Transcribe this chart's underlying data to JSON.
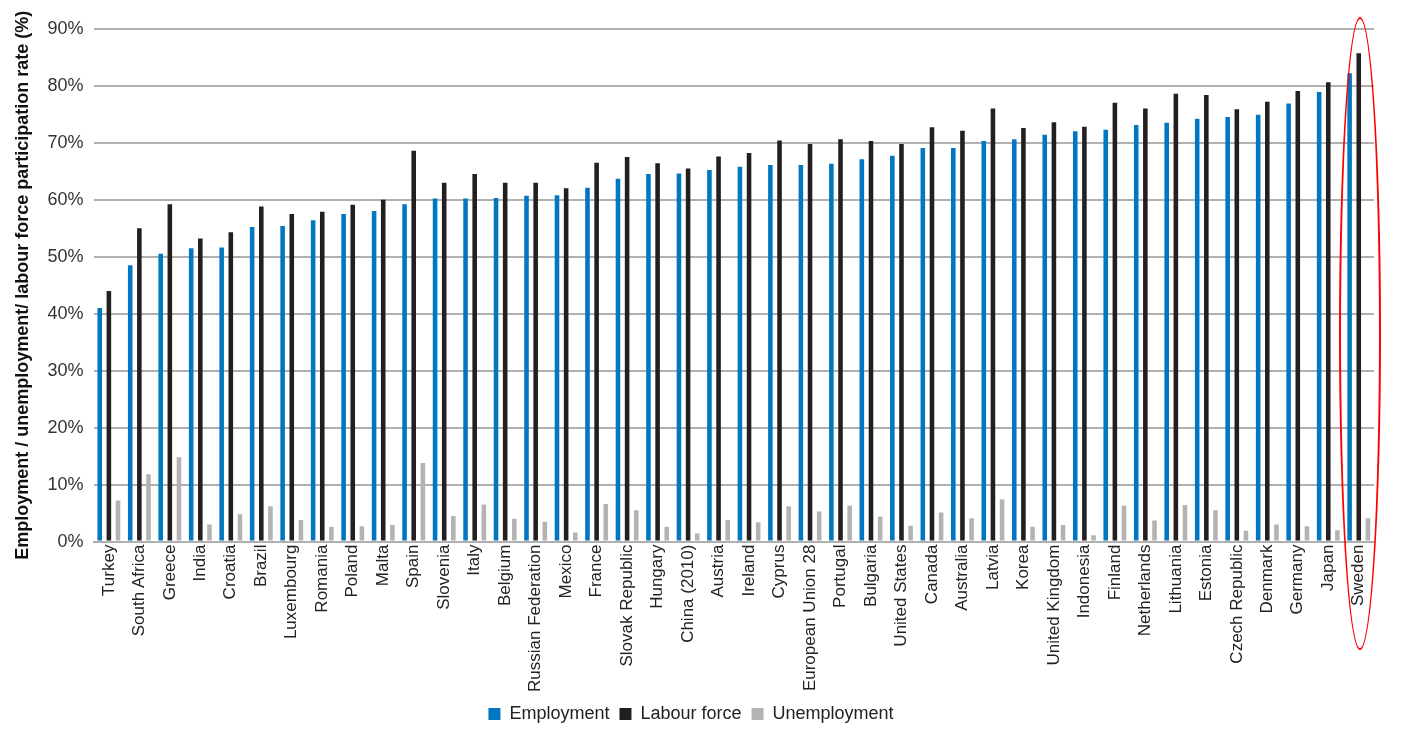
{
  "chart_data": {
    "type": "bar",
    "ylabel": "Employment / unemployment/ labour force participation rate (%)",
    "categories": [
      "Turkey",
      "South Africa",
      "Greece",
      "India",
      "Croatia",
      "Brazil",
      "Luxembourg",
      "Romania",
      "Poland",
      "Malta",
      "Spain",
      "Slovenia",
      "Italy",
      "Belgium",
      "Russian Federation",
      "Mexico",
      "France",
      "Slovak Republic",
      "Hungary",
      "China (2010)",
      "Austria",
      "Ireland",
      "Cyprus",
      "European Union 28",
      "Portugal",
      "Bulgaria",
      "United States",
      "Canada",
      "Australia",
      "Latvia",
      "Korea",
      "United Kingdom",
      "Indonesia",
      "Finland",
      "Netherlands",
      "Lithuania",
      "Estonia",
      "Czech Republic",
      "Denmark",
      "Germany",
      "Japan",
      "Sweden"
    ],
    "series": [
      {
        "name": "Employment",
        "color": "#0077c0",
        "values": [
          41,
          48.5,
          50.5,
          51.5,
          51.6,
          55.2,
          55.4,
          56.4,
          57.5,
          58,
          59.2,
          60.2,
          60.2,
          60.3,
          60.7,
          60.8,
          62.1,
          63.7,
          64.5,
          64.6,
          65.2,
          65.8,
          66.1,
          66.1,
          66.3,
          67.1,
          67.7,
          69.1,
          69.1,
          70.3,
          70.6,
          71.4,
          72,
          72.3,
          73.1,
          73.5,
          74.2,
          74.5,
          74.9,
          76.9,
          78.9,
          82.2
        ]
      },
      {
        "name": "Labour force",
        "color": "#231f20",
        "values": [
          44,
          55,
          59.2,
          53.2,
          54.3,
          58.8,
          57.5,
          57.9,
          59.1,
          60,
          68.6,
          63,
          64.5,
          63,
          63,
          62,
          66.5,
          67.5,
          66.4,
          65.5,
          67.6,
          68.2,
          70.4,
          69.8,
          70.6,
          70.3,
          69.8,
          72.7,
          72.1,
          76,
          72.6,
          73.6,
          72.8,
          77,
          76,
          78.6,
          78.4,
          75.9,
          77.2,
          79.1,
          80.6,
          85.7
        ]
      },
      {
        "name": "Unemployment",
        "color": "#b3b3b3",
        "values": [
          7.2,
          11.8,
          14.8,
          3,
          4.8,
          6.2,
          3.8,
          2.6,
          2.7,
          2.9,
          13.8,
          4.5,
          6.5,
          4,
          3.5,
          1.6,
          6.6,
          5.5,
          2.6,
          1.4,
          3.8,
          3.4,
          6.2,
          5.3,
          6.3,
          4.4,
          2.8,
          5.1,
          4.1,
          7.4,
          2.6,
          2.9,
          1.1,
          6.3,
          3.7,
          6.4,
          5.5,
          1.9,
          3,
          2.7,
          2,
          4.1
        ]
      }
    ],
    "ylim": [
      0,
      90
    ],
    "yticks": [
      {
        "value": 0,
        "label": "0%"
      },
      {
        "value": 10,
        "label": "10%"
      },
      {
        "value": 20,
        "label": "20%"
      },
      {
        "value": 30,
        "label": "30%"
      },
      {
        "value": 40,
        "label": "40%"
      },
      {
        "value": 50,
        "label": "50%"
      },
      {
        "value": 60,
        "label": "60%"
      },
      {
        "value": 70,
        "label": "70%"
      },
      {
        "value": 80,
        "label": "80%"
      },
      {
        "value": 90,
        "label": "90%"
      }
    ],
    "grid": "y",
    "legend": "bottom"
  }
}
